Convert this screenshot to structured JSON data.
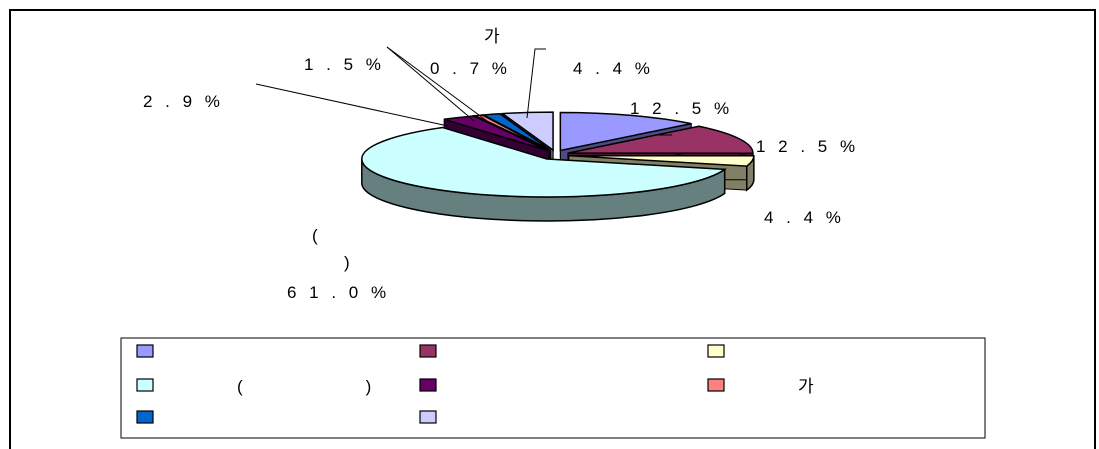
{
  "chart_data": {
    "type": "pie",
    "style": "3d-exploded",
    "slices": [
      {
        "label": "12.5%",
        "value": 12.5,
        "color": "#9999ff",
        "side": "#4c4c80"
      },
      {
        "label": "12.5%",
        "value": 12.5,
        "color": "#993366",
        "side": "#4d1a33"
      },
      {
        "label": "4.4%",
        "value": 4.4,
        "color": "#ffffcc",
        "side": "#808066"
      },
      {
        "label": "61.0%",
        "value": 61.0,
        "color": "#ccffff",
        "side": "#668080"
      },
      {
        "label": "2.9%",
        "value": 2.9,
        "color": "#660066",
        "side": "#330033"
      },
      {
        "label": "0.7%",
        "value": 0.7,
        "color": "#ff8080",
        "side": "#804040"
      },
      {
        "label": "1.5%",
        "value": 1.5,
        "color": "#0066cc",
        "side": "#003366"
      },
      {
        "label": "4.4%",
        "value": 4.4,
        "color": "#ccccff",
        "side": "#666680"
      }
    ],
    "label_text": {
      "s0": "1 2 . 5 %",
      "s1": "1 2 . 5 %",
      "s2": "4 . 4 %",
      "s3_line1": "(",
      "s3_line2": ")",
      "s3_value": "6 1 . 0 %",
      "s4": "2 . 9 %",
      "s5_name": "가",
      "s5_value": "0 . 7 %",
      "s6": "1 . 5 %",
      "s7": "4 . 4 %"
    },
    "legend": {
      "placement": "bottom",
      "entries": [
        {
          "text": "",
          "color": "#9999ff"
        },
        {
          "text": "",
          "color": "#993366"
        },
        {
          "text": "",
          "color": "#ffffcc"
        },
        {
          "text": "(                  )",
          "color": "#ccffff"
        },
        {
          "text": "",
          "color": "#660066"
        },
        {
          "text": "가",
          "color": "#ff8080"
        },
        {
          "text": "",
          "color": "#0066cc"
        },
        {
          "text": "",
          "color": "#ccccff"
        }
      ]
    }
  }
}
